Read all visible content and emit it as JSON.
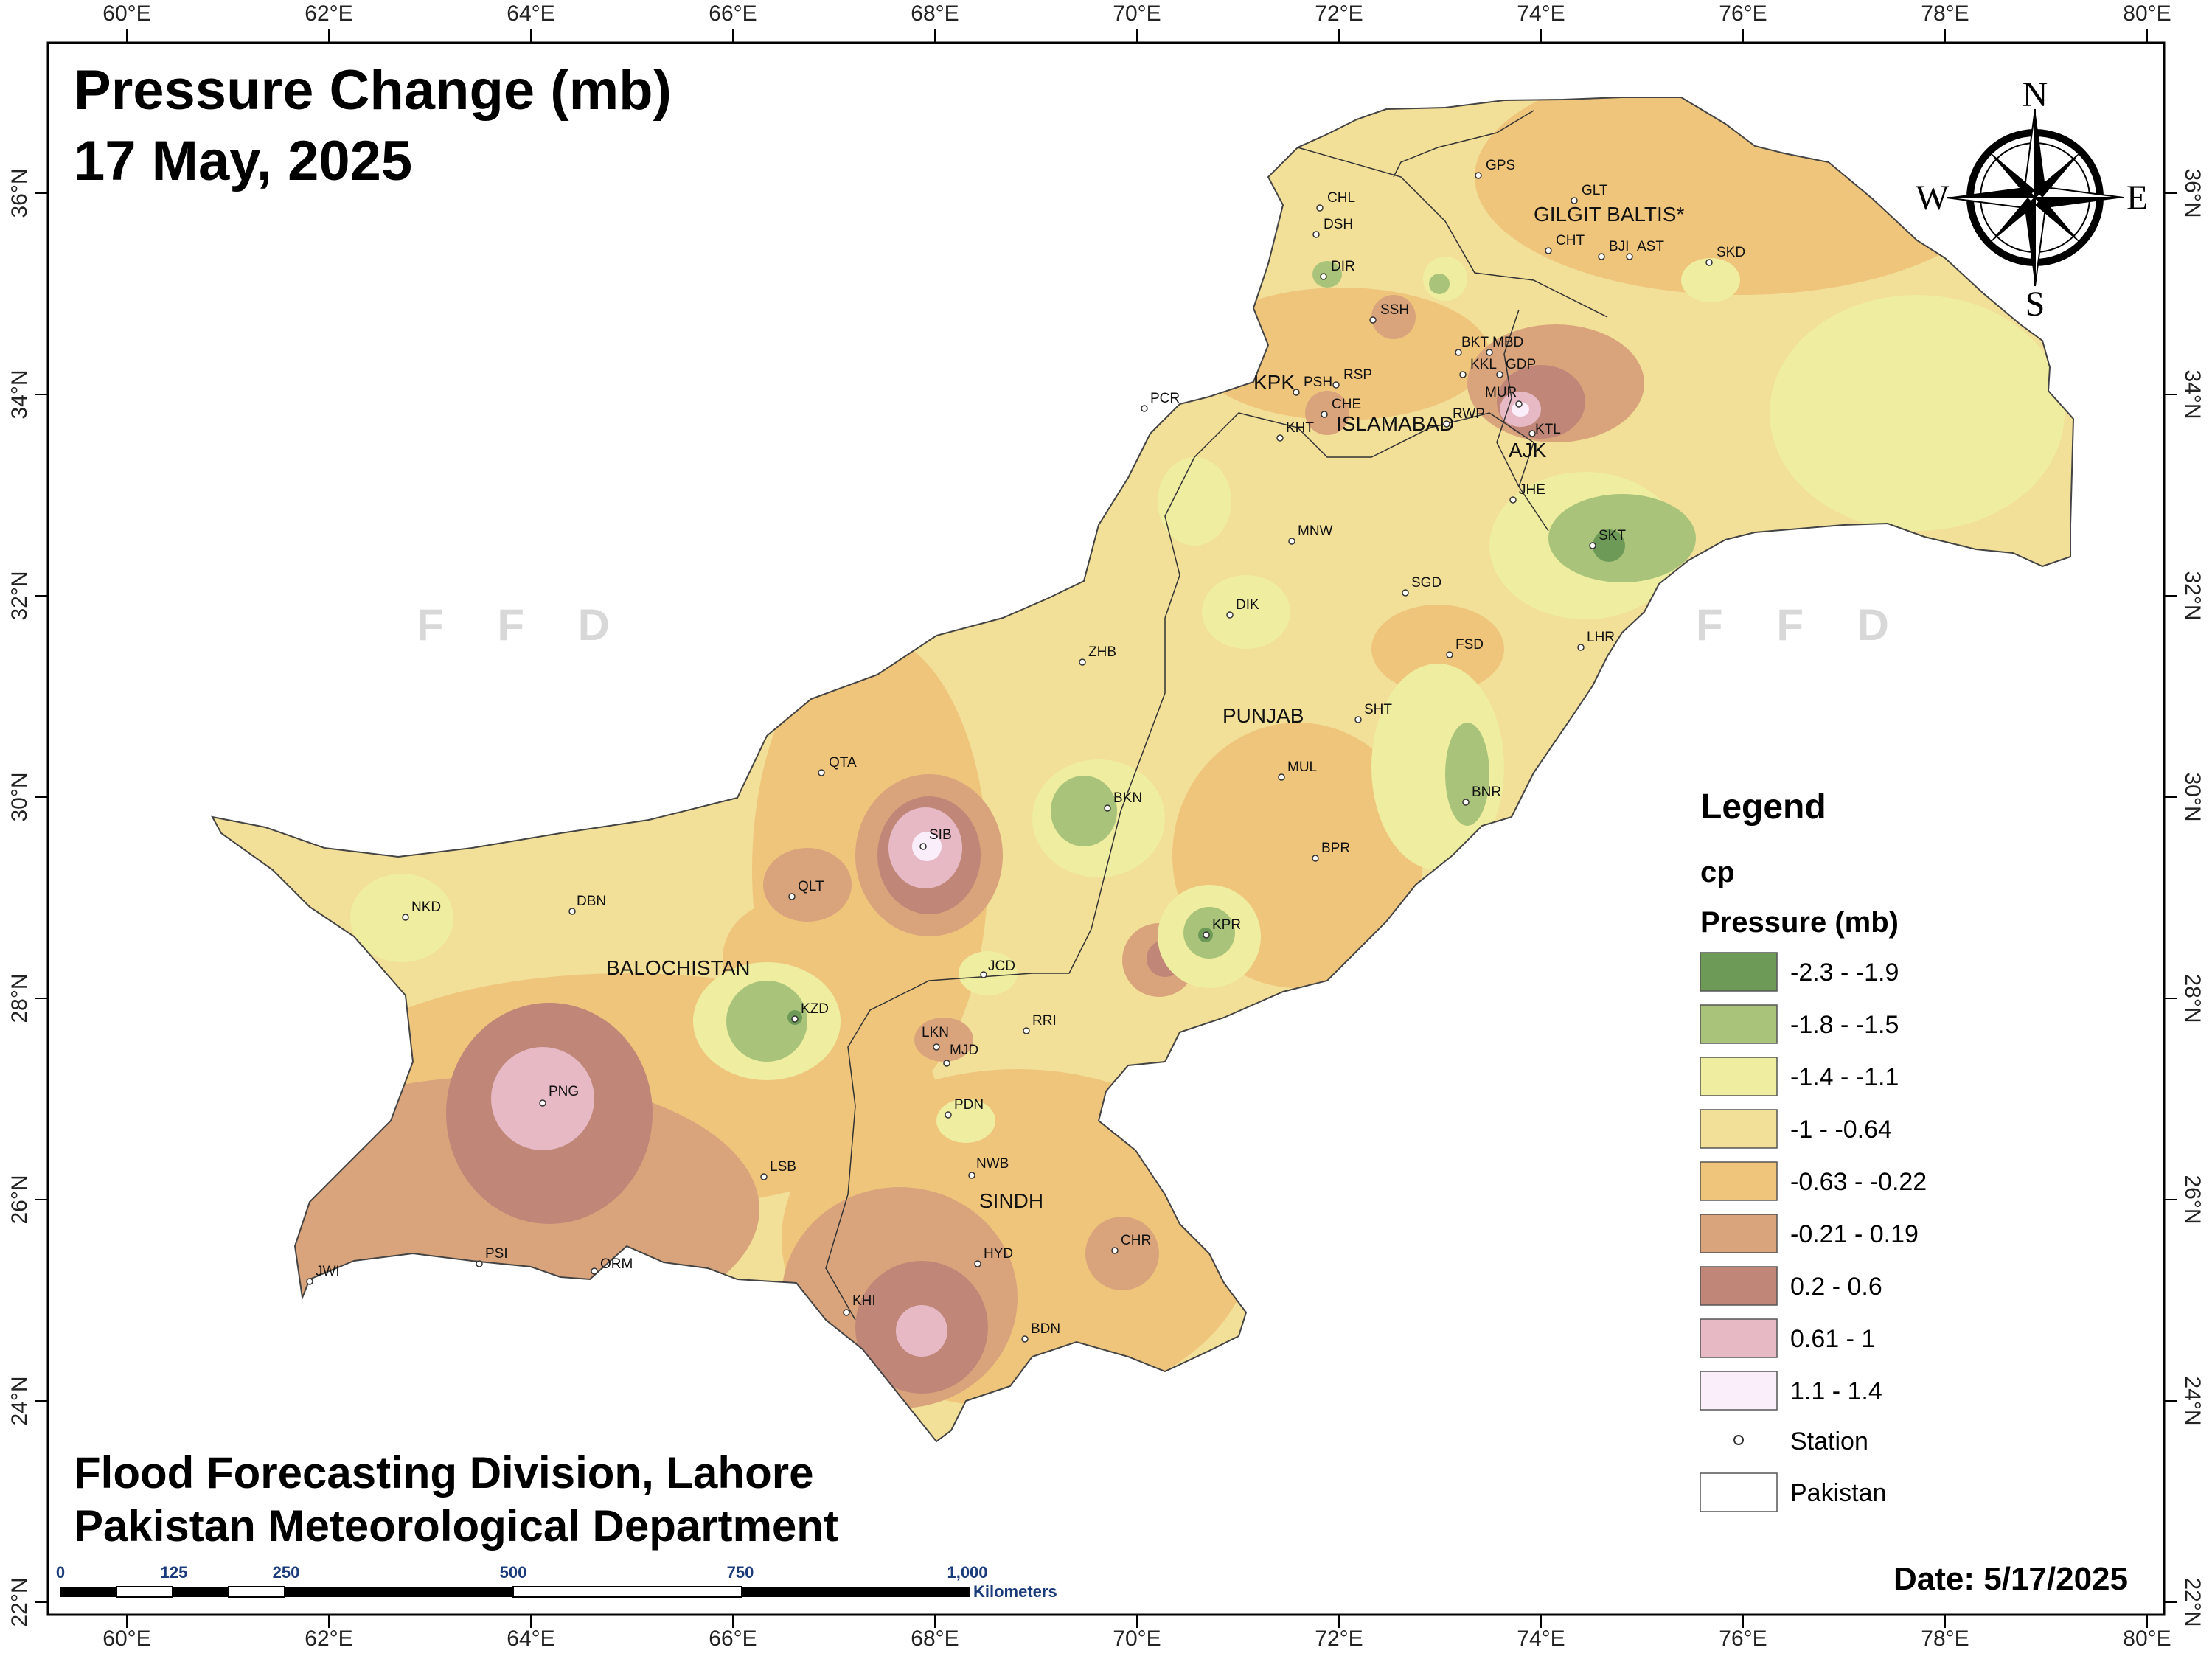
{
  "title": {
    "line1": "Pressure Change (mb)",
    "line2": "17 May, 2025"
  },
  "footer": {
    "line1": "Flood Forecasting Division, Lahore",
    "line2": "Pakistan Meteorological Department"
  },
  "date_label": "Date: 5/17/2025",
  "watermark": "F F D",
  "compass": {
    "north": "N",
    "south": "S",
    "east": "E",
    "west": "W"
  },
  "lon_ticks": [
    "60°E",
    "62°E",
    "64°E",
    "66°E",
    "68°E",
    "70°E",
    "72°E",
    "74°E",
    "76°E",
    "78°E",
    "80°E"
  ],
  "lat_ticks": [
    "36°N",
    "34°N",
    "32°N",
    "30°N",
    "28°N",
    "26°N",
    "24°N",
    "22°N"
  ],
  "scale_bar": {
    "ticks": [
      "0",
      "125",
      "250",
      "500",
      "750",
      "1,000"
    ],
    "unit": "Kilometers"
  },
  "legend": {
    "heading": "Legend",
    "layer": "cp",
    "field": "Pressure (mb)",
    "classes": [
      {
        "label": "-2.3 - -1.9",
        "color": "#6e9a58"
      },
      {
        "label": "-1.8 - -1.5",
        "color": "#a9c47a"
      },
      {
        "label": "-1.4 - -1.1",
        "color": "#eeeda0"
      },
      {
        "label": "-1 - -0.64",
        "color": "#f2df98"
      },
      {
        "label": "-0.63 - -0.22",
        "color": "#efc57c"
      },
      {
        "label": "-0.21 - 0.19",
        "color": "#d9a47c"
      },
      {
        "label": "0.2 - 0.6",
        "color": "#c08677"
      },
      {
        "label": "0.61 - 1",
        "color": "#e6b9c4"
      },
      {
        "label": "1.1 - 1.4",
        "color": "#fbeefb"
      }
    ],
    "station_label": "Station",
    "boundary_label": "Pakistan"
  },
  "regions": [
    "KPK",
    "ISLAMABAD",
    "AJK",
    "GILGIT BALTIS*",
    "PUNJAB",
    "BALOCHISTAN",
    "SINDH"
  ],
  "stations": [
    "CHL",
    "DSH",
    "DIR",
    "GPS",
    "GLT",
    "CHT",
    "BJI",
    "AST",
    "SKD",
    "SSH",
    "BKT",
    "MBD",
    "KKL",
    "GDP",
    "PSH",
    "RSP",
    "MUR",
    "PCR",
    "CHE",
    "KHT",
    "RWP",
    "KTL",
    "JHE",
    "SKT",
    "MNW",
    "SGD",
    "DIK",
    "LHR",
    "FSD",
    "ZHB",
    "SHT",
    "QTA",
    "MUL",
    "BKN",
    "BNR",
    "SIB",
    "BPR",
    "NKD",
    "DBN",
    "QLT",
    "KPR",
    "JCD",
    "KZD",
    "RRI",
    "LKN",
    "MJD",
    "PNG",
    "PDN",
    "LSB",
    "NWB",
    "HYD",
    "CHR",
    "PSI",
    "ORM",
    "JWI",
    "KHI",
    "BDN"
  ]
}
